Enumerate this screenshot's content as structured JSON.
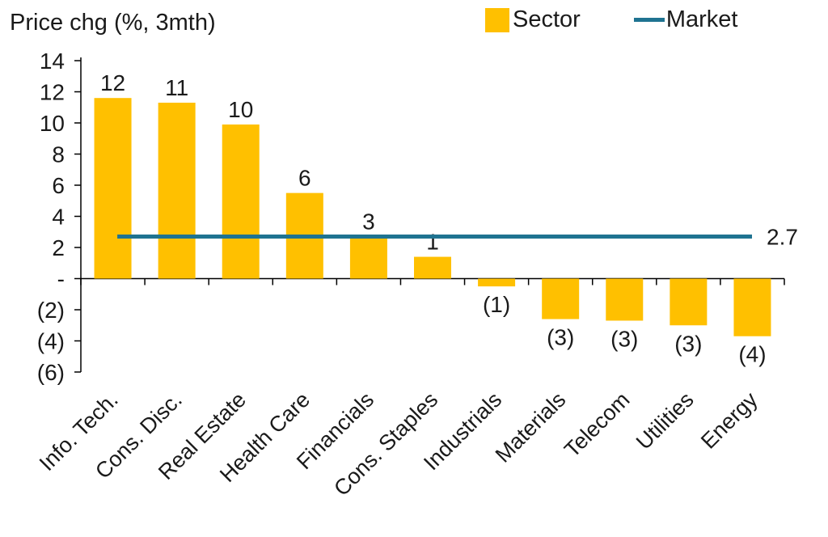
{
  "title": "Price chg (%, 3mth)",
  "legend": {
    "sector_label": "Sector",
    "market_label": "Market"
  },
  "colors": {
    "bar": "#FFC000",
    "line": "#1F7391",
    "axis": "#000000",
    "text": "#1A1A1A"
  },
  "chart_data": {
    "type": "bar",
    "title": "Price chg (%, 3mth)",
    "categories": [
      "Info. Tech.",
      "Cons. Disc.",
      "Real Estate",
      "Health Care",
      "Financials",
      "Cons. Staples",
      "Industrials",
      "Materials",
      "Telecom",
      "Utilities",
      "Energy"
    ],
    "series": [
      {
        "name": "Sector",
        "type": "bar",
        "color": "#FFC000",
        "values": [
          11.6,
          11.3,
          9.9,
          5.5,
          2.7,
          1.4,
          -0.5,
          -2.6,
          -2.7,
          -3.0,
          -3.7
        ],
        "data_labels": [
          "12",
          "11",
          "10",
          "6",
          "3",
          "1",
          "(1)",
          "(3)",
          "(3)",
          "(3)",
          "(4)"
        ]
      },
      {
        "name": "Market",
        "type": "line",
        "color": "#1F7391",
        "value": 2.7,
        "data_label": "2.7"
      }
    ],
    "ylim": [
      -6,
      14
    ],
    "yticks": [
      14,
      12,
      10,
      8,
      6,
      4,
      2,
      0,
      -2,
      -4,
      -6
    ],
    "ytick_labels": [
      "14",
      "12",
      "10",
      "8",
      "6",
      "4",
      "2",
      "-",
      "(2)",
      "(4)",
      "(6)"
    ],
    "negative_format": "parentheses",
    "legend_position": "top-right",
    "grid": false,
    "category_label_rotation": -45
  }
}
